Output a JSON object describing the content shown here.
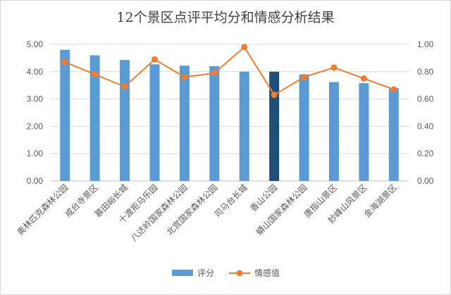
{
  "chart_data": {
    "type": "bar",
    "title": "12个景区点评平均分和情感分析结果",
    "categories": [
      "奥林匹克森林公园",
      "戒台寺景区",
      "慕田峪长城",
      "十渡拒马乐园",
      "八达岭国家森林公园",
      "北宫国家森林公园",
      "司马台长城",
      "香山公园",
      "蟒山国家森林公园",
      "唐指山景区",
      "妙峰山风景区",
      "金海湖景区"
    ],
    "series": [
      {
        "name": "评分",
        "type": "bar",
        "axis": "left",
        "values": [
          4.8,
          4.6,
          4.43,
          4.27,
          4.22,
          4.2,
          4.0,
          4.0,
          3.9,
          3.62,
          3.58,
          3.4
        ]
      },
      {
        "name": "情感值",
        "type": "line",
        "axis": "right",
        "values": [
          0.87,
          0.78,
          0.69,
          0.89,
          0.76,
          0.79,
          0.98,
          0.63,
          0.76,
          0.83,
          0.75,
          0.67
        ]
      }
    ],
    "highlight_index": 7,
    "ylim_left": [
      0,
      5
    ],
    "ylim_right": [
      0,
      1
    ],
    "left_ticks": [
      "0.00",
      "1.00",
      "2.00",
      "3.00",
      "4.00",
      "5.00"
    ],
    "right_ticks": [
      "0.00",
      "0.20",
      "0.40",
      "0.60",
      "0.80",
      "1.00"
    ],
    "grid": true,
    "legend_position": "bottom",
    "colors": {
      "bar": "#5b9bd5",
      "bar_highlight": "#1f4e79",
      "line": "#ed7d31",
      "grid": "#d9d9d9",
      "axis": "#bfbfbf"
    }
  }
}
